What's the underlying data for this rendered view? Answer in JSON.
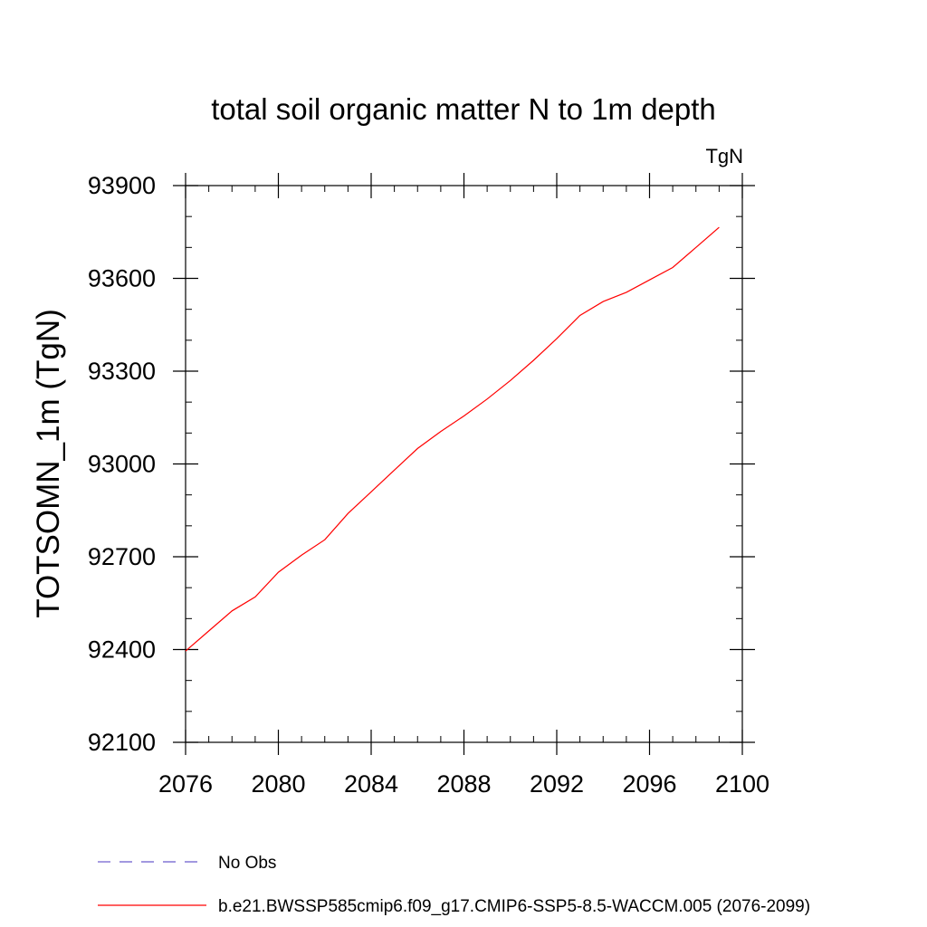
{
  "chart_data": {
    "type": "line",
    "title": "total soil organic matter N to 1m depth",
    "units": "TgN",
    "ylabel": "TOTSOMN_1m  (TgN)",
    "xlabel": "",
    "xlim": [
      2076,
      2100
    ],
    "ylim": [
      92100,
      93900
    ],
    "xticks": [
      2076,
      2080,
      2084,
      2088,
      2092,
      2096,
      2100
    ],
    "xticks_minor_step": 1,
    "yticks": [
      92100,
      92400,
      92700,
      93000,
      93300,
      93600,
      93900
    ],
    "yticks_minor_step": 100,
    "grid": false,
    "legend_position": "bottom",
    "series": [
      {
        "name": "No Obs",
        "color": "#6a5acd",
        "dash": "dashed",
        "x": [],
        "y": []
      },
      {
        "name": "b.e21.BWSSP585cmip6.f09_g17.CMIP6-SSP5-8.5-WACCM.005 (2076-2099)",
        "color": "#ff0000",
        "dash": "solid",
        "x": [
          2076,
          2077,
          2078,
          2079,
          2080,
          2081,
          2082,
          2083,
          2084,
          2085,
          2086,
          2087,
          2088,
          2089,
          2090,
          2091,
          2092,
          2093,
          2094,
          2095,
          2096,
          2097,
          2098,
          2099
        ],
        "y": [
          92395,
          92460,
          92525,
          92570,
          92650,
          92705,
          92755,
          92840,
          92910,
          92980,
          93050,
          93105,
          93155,
          93210,
          93270,
          93335,
          93405,
          93480,
          93525,
          93555,
          93595,
          93635,
          93700,
          93765
        ]
      }
    ]
  }
}
